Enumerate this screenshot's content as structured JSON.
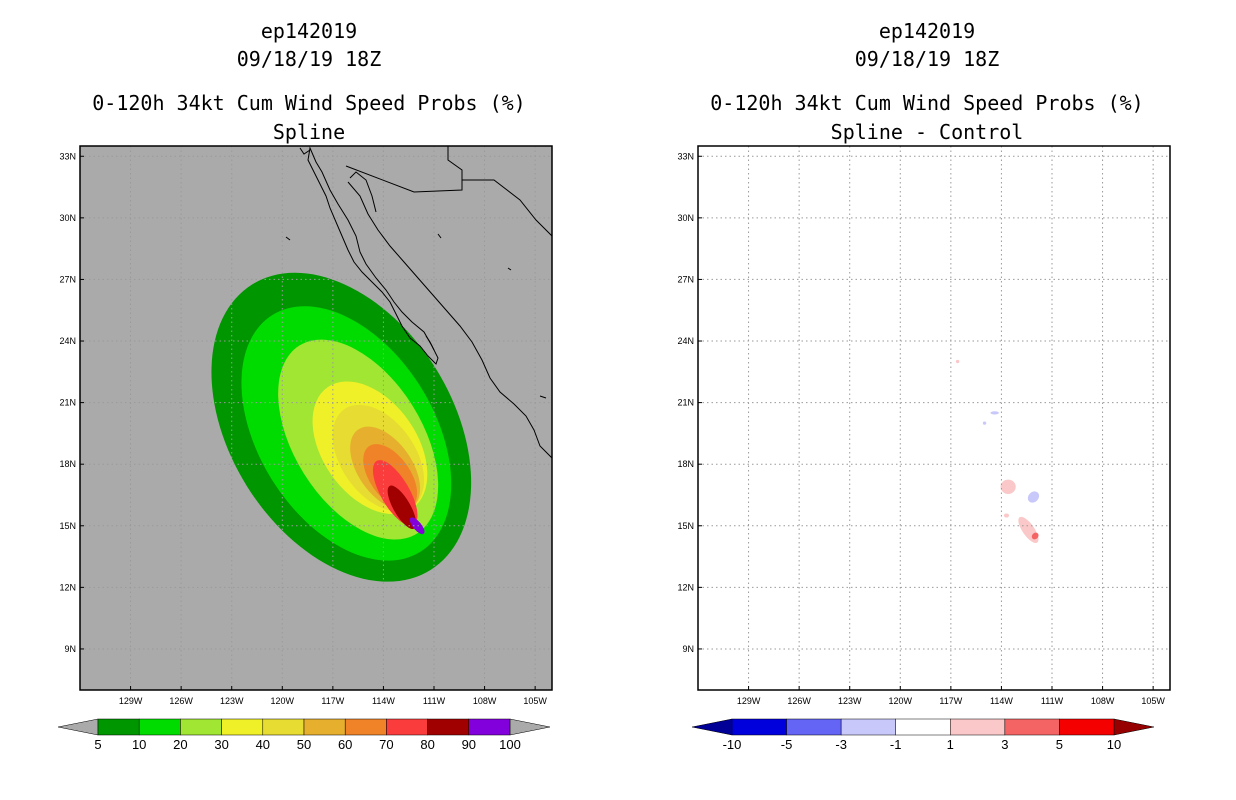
{
  "chart_data": [
    {
      "type": "contour-map",
      "title_lines": [
        "ep142019",
        "09/18/19 18Z"
      ],
      "title": "0-120h 34kt Cum Wind Speed Probs (%)",
      "subtitle": "Spline",
      "xlabel": "",
      "ylabel": "",
      "x_ticks": [
        "129W",
        "126W",
        "123W",
        "120W",
        "117W",
        "114W",
        "111W",
        "108W",
        "105W"
      ],
      "x_tick_values": [
        -129,
        -126,
        -123,
        -120,
        -117,
        -114,
        -111,
        -108,
        -105
      ],
      "y_ticks": [
        "33N",
        "30N",
        "27N",
        "24N",
        "21N",
        "18N",
        "15N",
        "12N",
        "9N"
      ],
      "y_tick_values": [
        33,
        30,
        27,
        24,
        21,
        18,
        15,
        12,
        9
      ],
      "xlim": [
        -132,
        -104
      ],
      "ylim": [
        7,
        33.5
      ],
      "background_color": "#aaaaaa",
      "colorbar": {
        "levels": [
          "5",
          "10",
          "20",
          "30",
          "40",
          "50",
          "60",
          "70",
          "80",
          "90",
          "100"
        ],
        "colors": [
          "#009600",
          "#00dc00",
          "#a0e632",
          "#f0f028",
          "#e6dc32",
          "#e6af2d",
          "#f08228",
          "#fa3c3c",
          "#a00000",
          "#8200dc"
        ]
      },
      "contours": [
        {
          "level": 5,
          "color": "#009600",
          "center": [
            -116.5,
            19.8
          ],
          "half_width_deg": [
            6.6,
            8.2
          ],
          "rotation": -32
        },
        {
          "level": 10,
          "color": "#00dc00",
          "center": [
            -116.2,
            19.5
          ],
          "half_width_deg": [
            5.2,
            6.8
          ],
          "rotation": -32
        },
        {
          "level": 20,
          "color": "#a0e632",
          "center": [
            -115.5,
            19.2
          ],
          "half_width_deg": [
            3.8,
            5.4
          ],
          "rotation": -32
        },
        {
          "level": 30,
          "color": "#f0f028",
          "center": [
            -114.8,
            18.8
          ],
          "half_width_deg": [
            2.8,
            3.6
          ],
          "rotation": -35
        },
        {
          "level": 40,
          "color": "#e6dc32",
          "center": [
            -114.3,
            18.3
          ],
          "half_width_deg": [
            2.2,
            2.9
          ],
          "rotation": -35
        },
        {
          "level": 50,
          "color": "#e6af2d",
          "center": [
            -113.9,
            17.8
          ],
          "half_width_deg": [
            1.6,
            2.3
          ],
          "rotation": -35
        },
        {
          "level": 60,
          "color": "#f08228",
          "center": [
            -113.6,
            17.4
          ],
          "half_width_deg": [
            1.2,
            1.8
          ],
          "rotation": -35
        },
        {
          "level": 70,
          "color": "#fa3c3c",
          "center": [
            -113.3,
            16.6
          ],
          "half_width_deg": [
            0.85,
            1.8
          ],
          "rotation": -30
        },
        {
          "level": 80,
          "color": "#a00000",
          "center": [
            -112.9,
            15.9
          ],
          "half_width_deg": [
            0.5,
            1.2
          ],
          "rotation": -30
        },
        {
          "level": 90,
          "color": "#8200dc",
          "center": [
            -112.0,
            15.0
          ],
          "half_width_deg": [
            0.25,
            0.5
          ],
          "rotation": -40
        }
      ]
    },
    {
      "type": "contour-map",
      "title_lines": [
        "ep142019",
        "09/18/19 18Z"
      ],
      "title": "0-120h 34kt Cum Wind Speed Probs (%)",
      "subtitle": "Spline - Control",
      "xlabel": "",
      "ylabel": "",
      "x_ticks": [
        "129W",
        "126W",
        "123W",
        "120W",
        "117W",
        "114W",
        "111W",
        "108W",
        "105W"
      ],
      "x_tick_values": [
        -129,
        -126,
        -123,
        -120,
        -117,
        -114,
        -111,
        -108,
        -105
      ],
      "y_ticks": [
        "33N",
        "30N",
        "27N",
        "24N",
        "21N",
        "18N",
        "15N",
        "12N",
        "9N"
      ],
      "y_tick_values": [
        33,
        30,
        27,
        24,
        21,
        18,
        15,
        12,
        9
      ],
      "xlim": [
        -132,
        -104
      ],
      "ylim": [
        7,
        33.5
      ],
      "background_color": "#ffffff",
      "colorbar": {
        "levels": [
          "-10",
          "-5",
          "-3",
          "-1",
          "1",
          "3",
          "5",
          "10"
        ],
        "colors": [
          "#0000dc",
          "#6464f5",
          "#c8c8fa",
          "#ffffff",
          "#fac8c8",
          "#f56464",
          "#f50000"
        ],
        "left_tip_color": "#000096",
        "right_tip_color": "#960000"
      },
      "anomalies": [
        {
          "range": "1 to 3",
          "color": "#fac8c8",
          "center": [
            -112.4,
            14.8
          ],
          "half_width_deg": [
            0.35,
            0.75
          ],
          "rotation": -35
        },
        {
          "range": "1 to 3",
          "color": "#fac8c8",
          "center": [
            -113.6,
            16.9
          ],
          "half_width_deg": [
            0.45,
            0.35
          ],
          "rotation": 0
        },
        {
          "range": "3 to 5",
          "color": "#f56464",
          "center": [
            -112.0,
            14.5
          ],
          "half_width_deg": [
            0.18,
            0.18
          ],
          "rotation": 45
        },
        {
          "range": "1 to 3",
          "color": "#fac8c8",
          "center": [
            -113.7,
            15.5
          ],
          "half_width_deg": [
            0.15,
            0.1
          ],
          "rotation": 0
        },
        {
          "range": "1 to 3",
          "color": "#fac8c8",
          "center": [
            -116.6,
            23.0
          ],
          "half_width_deg": [
            0.1,
            0.08
          ],
          "rotation": 0
        },
        {
          "range": "-3 to -1",
          "color": "#c8c8fa",
          "center": [
            -112.1,
            16.4
          ],
          "half_width_deg": [
            0.3,
            0.3
          ],
          "rotation": 45
        },
        {
          "range": "-3 to -1",
          "color": "#c8c8fa",
          "center": [
            -114.4,
            20.5
          ],
          "half_width_deg": [
            0.25,
            0.08
          ],
          "rotation": 0
        },
        {
          "range": "-3 to -1",
          "color": "#c8c8fa",
          "center": [
            -115.0,
            20.0
          ],
          "half_width_deg": [
            0.1,
            0.08
          ],
          "rotation": 0
        }
      ]
    }
  ]
}
